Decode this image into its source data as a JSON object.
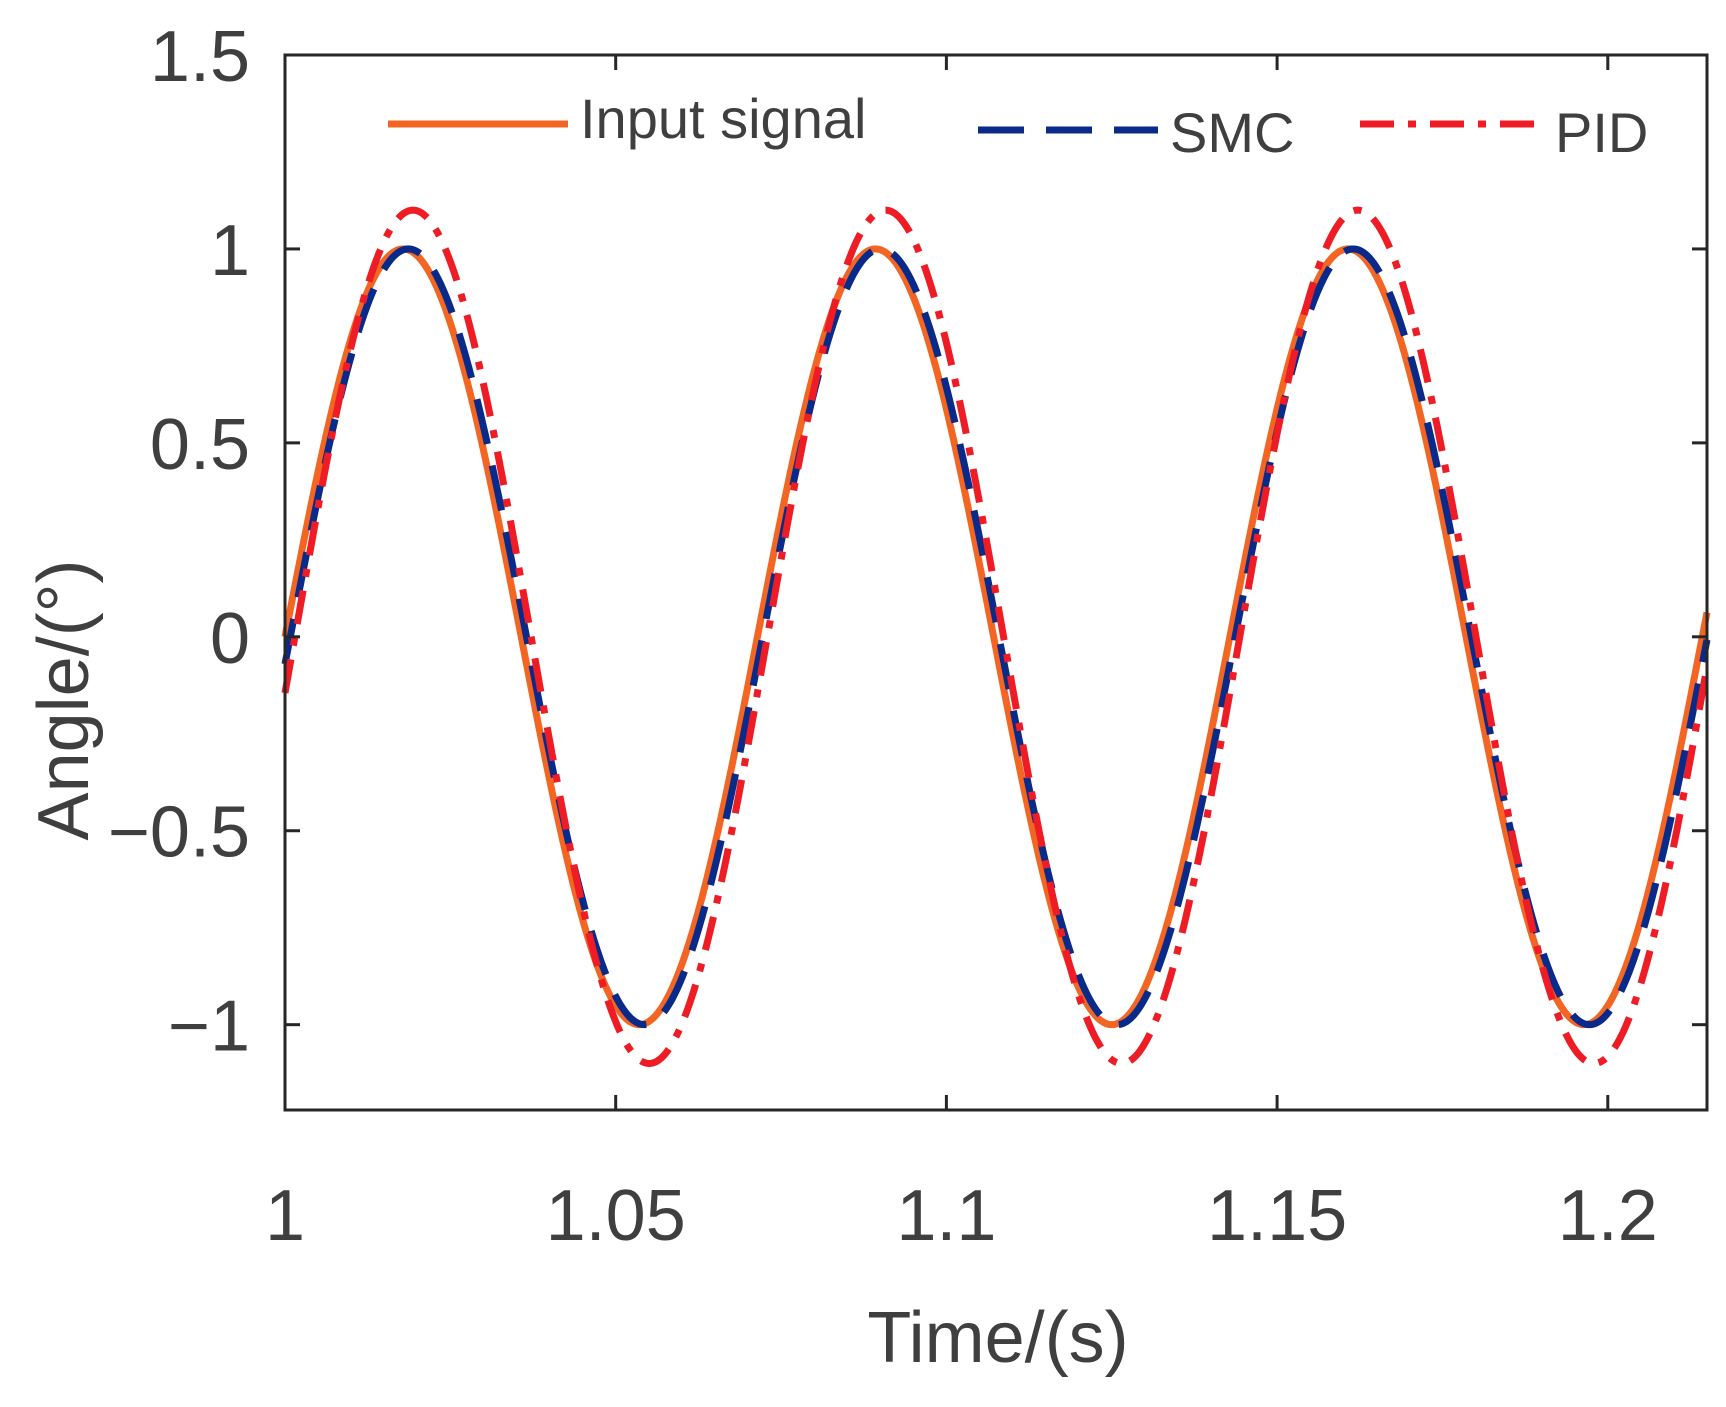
{
  "chart_data": {
    "type": "line",
    "title": "",
    "xlabel": "Time/(s)",
    "ylabel": "Angle/(°)",
    "xlim": [
      1,
      1.215
    ],
    "ylim": [
      -1.22,
      1.5
    ],
    "xticks": [
      1,
      1.05,
      1.1,
      1.15,
      1.2
    ],
    "xtick_labels": [
      "1",
      "1.05",
      "1.1",
      "1.15",
      "1.2"
    ],
    "yticks": [
      1.5,
      1,
      0.5,
      0,
      -0.5,
      -1
    ],
    "ytick_labels": [
      "1.5",
      "1",
      "0.5",
      "0",
      "−0.5",
      "−1"
    ],
    "grid": false,
    "legend_position": "top",
    "series": [
      {
        "name": "Input signal",
        "color": "#f26522",
        "style": "solid",
        "function": "sine",
        "amplitude": 1.0,
        "frequency_hz": 14,
        "phase_lag_s": 0,
        "t_start": 1,
        "t_end": 1.215
      },
      {
        "name": "SMC",
        "color": "#0a2a8a",
        "style": "dashed",
        "function": "sine",
        "amplitude": 1.0,
        "frequency_hz": 14,
        "phase_lag_s": 0.0008,
        "t_start": 1,
        "t_end": 1.215
      },
      {
        "name": "PID",
        "color": "#ee1c25",
        "style": "dashdot",
        "function": "sine",
        "amplitude": 1.1,
        "frequency_hz": 14,
        "phase_lag_s": 0.0015,
        "t_start": 1,
        "t_end": 1.215
      }
    ]
  },
  "legend": {
    "items": [
      {
        "label": "Input signal"
      },
      {
        "label": "SMC"
      },
      {
        "label": "PID"
      }
    ]
  }
}
